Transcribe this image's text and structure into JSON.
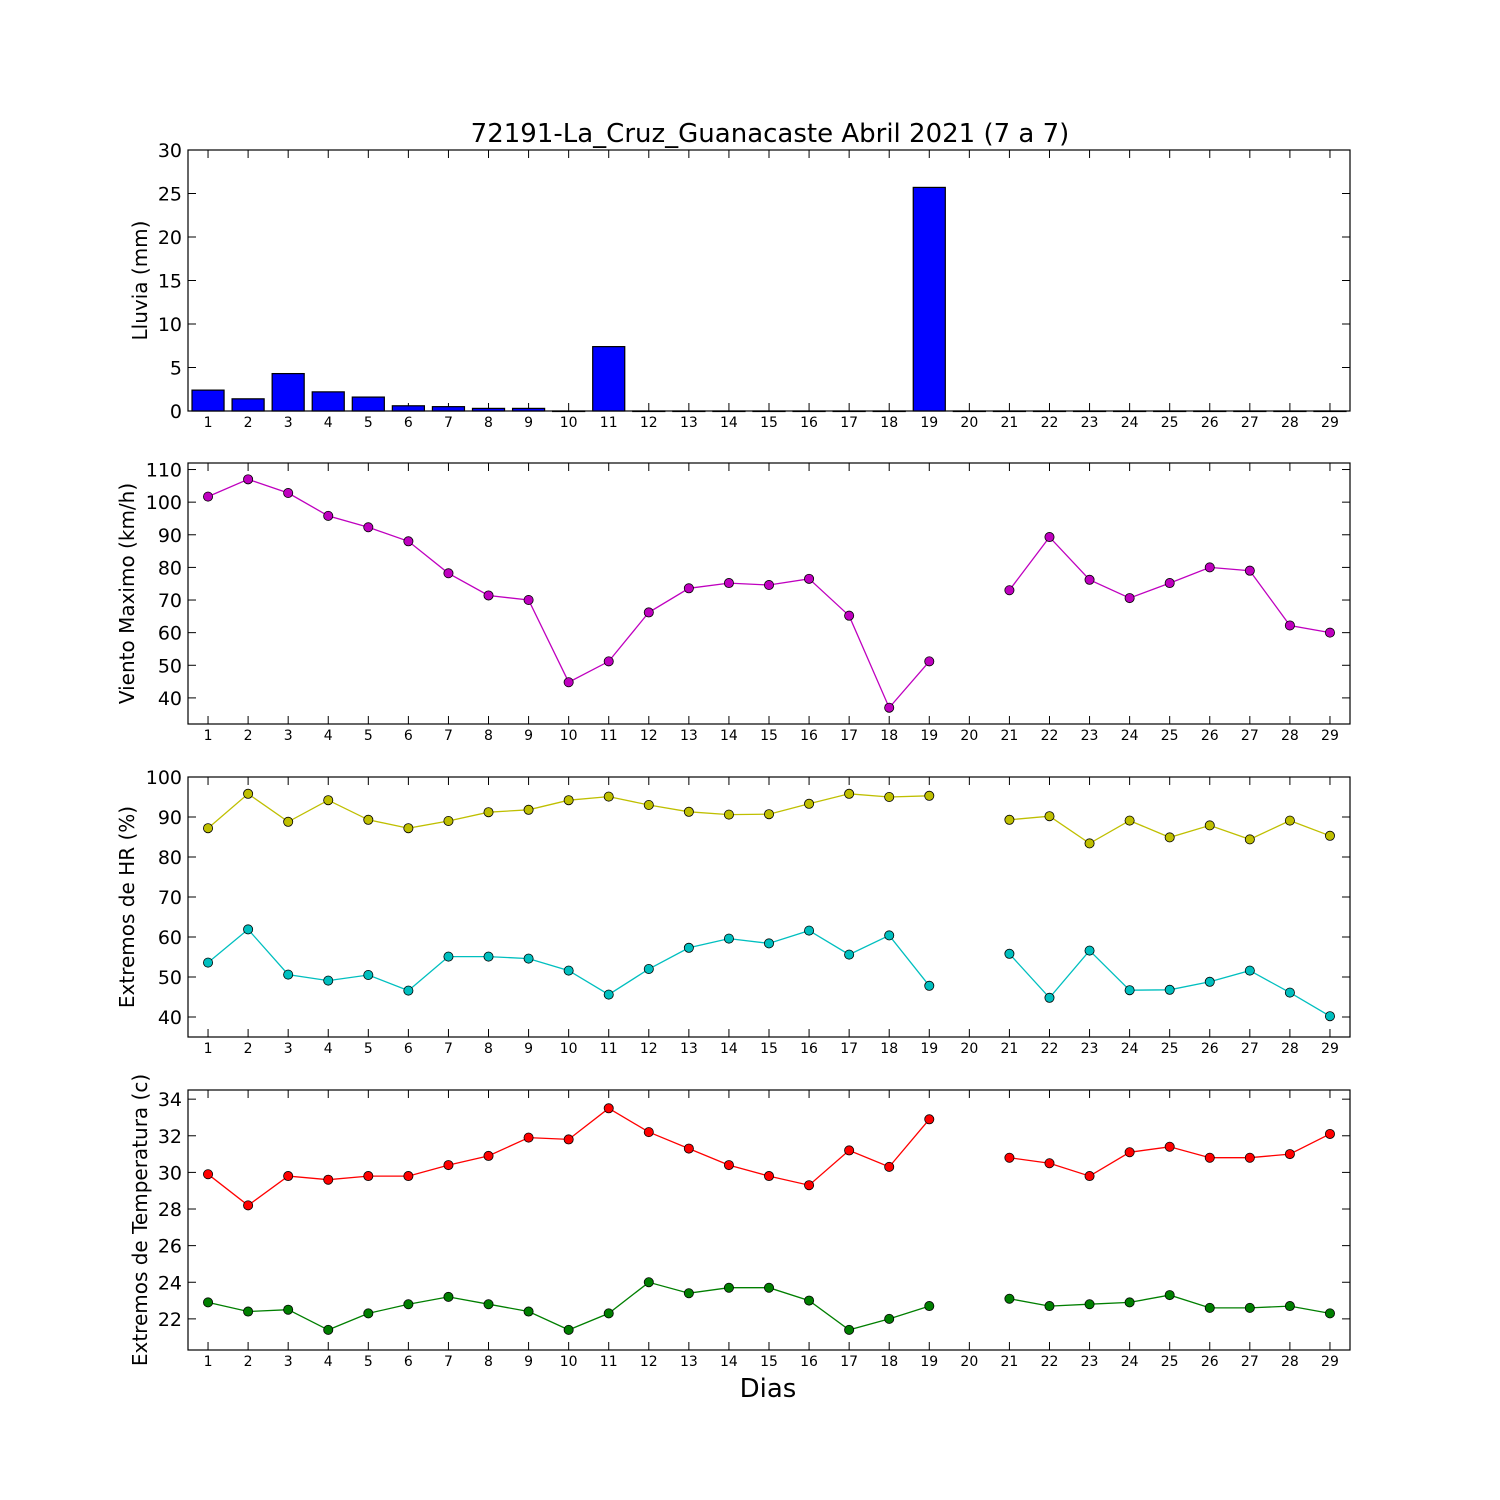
{
  "title": "72191-La_Cruz_Guanacaste Abril 2021  (7 a 7)",
  "xlabel": "Dias",
  "chart_data": [
    {
      "type": "bar",
      "ylabel": "Lluvia (mm)",
      "ylim": [
        0,
        30
      ],
      "yticks": [
        0,
        5,
        10,
        15,
        20,
        25,
        30
      ],
      "x": [
        1,
        2,
        3,
        4,
        5,
        6,
        7,
        8,
        9,
        10,
        11,
        12,
        13,
        14,
        15,
        16,
        17,
        18,
        19,
        20,
        21,
        22,
        23,
        24,
        25,
        26,
        27,
        28,
        29
      ],
      "series": [
        {
          "color": "#0000ff",
          "values": [
            2.4,
            1.4,
            4.3,
            2.2,
            1.6,
            0.6,
            0.5,
            0.3,
            0.3,
            0,
            7.4,
            0,
            0,
            0,
            0,
            0,
            0,
            0,
            25.7,
            0,
            0,
            0,
            0,
            0,
            0,
            0,
            0,
            0,
            0
          ]
        }
      ]
    },
    {
      "type": "line",
      "ylabel": "Viento Maximo (km/h)",
      "ylim": [
        32,
        112
      ],
      "yticks": [
        40,
        50,
        60,
        70,
        80,
        90,
        100,
        110
      ],
      "x": [
        1,
        2,
        3,
        4,
        5,
        6,
        7,
        8,
        9,
        10,
        11,
        12,
        13,
        14,
        15,
        16,
        17,
        18,
        19,
        20,
        21,
        22,
        23,
        24,
        25,
        26,
        27,
        28,
        29
      ],
      "series": [
        {
          "color": "#bf00bf",
          "values": [
            101.7,
            107,
            102.8,
            95.8,
            92.3,
            88,
            78.2,
            71.4,
            70,
            44.8,
            51.2,
            66.2,
            73.6,
            75.2,
            74.6,
            76.5,
            65.2,
            37,
            51.2,
            null,
            73,
            89.3,
            76.2,
            70.6,
            75.2,
            80,
            79,
            62.2,
            60
          ]
        }
      ]
    },
    {
      "type": "line",
      "ylabel": "Extremos de HR (%)",
      "ylim": [
        35,
        100
      ],
      "yticks": [
        40,
        50,
        60,
        70,
        80,
        90,
        100
      ],
      "x": [
        1,
        2,
        3,
        4,
        5,
        6,
        7,
        8,
        9,
        10,
        11,
        12,
        13,
        14,
        15,
        16,
        17,
        18,
        19,
        20,
        21,
        22,
        23,
        24,
        25,
        26,
        27,
        28,
        29
      ],
      "series": [
        {
          "color": "#bfbf00",
          "values": [
            87.2,
            95.8,
            88.8,
            94.2,
            89.3,
            87.2,
            89,
            91.2,
            91.8,
            94.2,
            95.1,
            93,
            91.3,
            90.6,
            90.7,
            93.3,
            95.8,
            95,
            95.3,
            null,
            89.3,
            90.2,
            83.4,
            89.1,
            84.9,
            87.9,
            84.4,
            89.1,
            85.3
          ]
        },
        {
          "color": "#00bfbf",
          "values": [
            53.6,
            61.9,
            50.6,
            49.1,
            50.5,
            46.6,
            55.1,
            55.1,
            54.6,
            51.6,
            45.6,
            52,
            57.3,
            59.6,
            58.4,
            61.6,
            55.6,
            60.4,
            47.8,
            null,
            55.8,
            44.8,
            56.6,
            46.7,
            46.8,
            48.8,
            51.6,
            46.1,
            40.2
          ]
        }
      ]
    },
    {
      "type": "line",
      "ylabel": "Extremos de Temperatura (c)",
      "ylim": [
        20.3,
        34.5
      ],
      "yticks": [
        22,
        24,
        26,
        28,
        30,
        32,
        34
      ],
      "x": [
        1,
        2,
        3,
        4,
        5,
        6,
        7,
        8,
        9,
        10,
        11,
        12,
        13,
        14,
        15,
        16,
        17,
        18,
        19,
        20,
        21,
        22,
        23,
        24,
        25,
        26,
        27,
        28,
        29
      ],
      "series": [
        {
          "color": "#ff0000",
          "values": [
            29.9,
            28.2,
            29.8,
            29.6,
            29.8,
            29.8,
            30.4,
            30.9,
            31.9,
            31.8,
            33.5,
            32.2,
            31.3,
            30.4,
            29.8,
            29.3,
            31.2,
            30.3,
            32.9,
            null,
            30.8,
            30.5,
            29.8,
            31.1,
            31.4,
            30.8,
            30.8,
            31,
            32.1
          ]
        },
        {
          "color": "#007f00",
          "values": [
            22.9,
            22.4,
            22.5,
            21.4,
            22.3,
            22.8,
            23.2,
            22.8,
            22.4,
            21.4,
            22.3,
            24,
            23.4,
            23.7,
            23.7,
            23,
            21.4,
            22,
            22.7,
            null,
            23.1,
            22.7,
            22.8,
            22.9,
            23.3,
            22.6,
            22.6,
            22.7,
            22.3
          ]
        }
      ]
    }
  ]
}
